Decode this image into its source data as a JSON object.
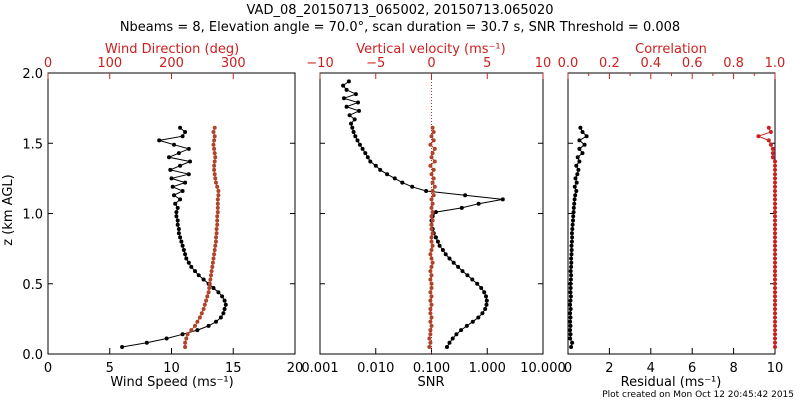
{
  "title": {
    "line1": "VAD_08_20150713_065002, 20150713.065020",
    "line2": "Nbeams = 8, Elevation angle = 70.0°, scan duration = 30.7 s, SNR Threshold = 0.008"
  },
  "credit": "Plot created on Mon Oct 12 20:45:42 2015",
  "colors": {
    "black": "#000000",
    "red": "#cc2020",
    "brown": "#b0442a"
  },
  "chart_data": [
    {
      "id": "wind",
      "type": "line",
      "ylabel": "z (km AGL)",
      "ylim": [
        0,
        2
      ],
      "yticks": [
        "0.0",
        "0.5",
        "1.0",
        "1.5",
        "2.0"
      ],
      "xlabel": "Wind Speed (ms⁻¹)",
      "xlim": [
        0,
        20
      ],
      "xticks": [
        "0",
        "5",
        "10",
        "15",
        "20"
      ],
      "x2label": "Wind Direction (deg)",
      "x2lim": [
        0,
        400
      ],
      "x2ticks": [
        "0",
        "100",
        "200",
        "300"
      ],
      "series": [
        {
          "axis": "bottom",
          "color": "#000000",
          "z": [
            0.05,
            0.08,
            0.11,
            0.14,
            0.17,
            0.2,
            0.23,
            0.26,
            0.29,
            0.32,
            0.35,
            0.38,
            0.41,
            0.44,
            0.47,
            0.5,
            0.53,
            0.56,
            0.59,
            0.62,
            0.65,
            0.68,
            0.71,
            0.74,
            0.77,
            0.8,
            0.83,
            0.86,
            0.89,
            0.92,
            0.95,
            0.98,
            1.01,
            1.04,
            1.07,
            1.1,
            1.13,
            1.16,
            1.19,
            1.22,
            1.25,
            1.28,
            1.31,
            1.34,
            1.37,
            1.4,
            1.43,
            1.46,
            1.49,
            1.52,
            1.55,
            1.58,
            1.61
          ],
          "values": [
            6.0,
            8.0,
            9.6,
            10.9,
            12.1,
            13.0,
            13.6,
            14.0,
            14.2,
            14.3,
            14.4,
            14.3,
            14.1,
            13.8,
            13.4,
            13.0,
            12.6,
            12.2,
            11.9,
            11.6,
            11.4,
            11.2,
            11.1,
            11.0,
            10.9,
            10.8,
            10.7,
            10.6,
            10.6,
            10.5,
            10.5,
            10.4,
            10.4,
            10.5,
            10.3,
            10.7,
            10.2,
            10.9,
            10.1,
            11.1,
            10.0,
            11.4,
            9.9,
            10.7,
            11.5,
            9.8,
            10.6,
            11.4,
            10.2,
            9.0,
            10.9,
            11.1,
            10.7
          ]
        },
        {
          "axis": "top",
          "color": "#b0442a",
          "z": [
            0.05,
            0.08,
            0.11,
            0.14,
            0.17,
            0.2,
            0.23,
            0.26,
            0.29,
            0.32,
            0.35,
            0.38,
            0.41,
            0.44,
            0.47,
            0.5,
            0.53,
            0.56,
            0.59,
            0.62,
            0.65,
            0.68,
            0.71,
            0.74,
            0.77,
            0.8,
            0.83,
            0.86,
            0.89,
            0.92,
            0.95,
            0.98,
            1.01,
            1.04,
            1.07,
            1.1,
            1.13,
            1.16,
            1.19,
            1.22,
            1.25,
            1.28,
            1.31,
            1.34,
            1.37,
            1.4,
            1.43,
            1.46,
            1.49,
            1.52,
            1.55,
            1.58,
            1.61
          ],
          "values": [
            222,
            222,
            224,
            226,
            232,
            238,
            242,
            246,
            249,
            252,
            254,
            256,
            258,
            260,
            261,
            262,
            263,
            264,
            265,
            266,
            267,
            268,
            269,
            270,
            271,
            272,
            272,
            273,
            273,
            274,
            274,
            274,
            275,
            275,
            275,
            275,
            276,
            276,
            274,
            272,
            271,
            270,
            269,
            269,
            270,
            271,
            270,
            269,
            268,
            269,
            270,
            268,
            270
          ]
        }
      ]
    },
    {
      "id": "snr",
      "type": "line",
      "ylim": [
        0,
        2
      ],
      "xlabel": "SNR",
      "xlim": [
        0.001,
        10
      ],
      "xscale": "log",
      "xticks": [
        "0.001",
        "0.010",
        "0.100",
        "1.000",
        "10.000"
      ],
      "x2label": "Vertical velocity (ms⁻¹)",
      "x2lim": [
        -10,
        10
      ],
      "x2ticks": [
        "−10",
        "−5",
        "0",
        "5",
        "10"
      ],
      "threshold_line_at_vertical_velocity": 0,
      "series": [
        {
          "axis": "bottom",
          "color": "#000000",
          "z": [
            0.05,
            0.08,
            0.11,
            0.14,
            0.17,
            0.2,
            0.23,
            0.26,
            0.29,
            0.32,
            0.35,
            0.38,
            0.41,
            0.44,
            0.47,
            0.5,
            0.53,
            0.56,
            0.59,
            0.62,
            0.65,
            0.68,
            0.71,
            0.74,
            0.77,
            0.8,
            0.83,
            0.86,
            0.89,
            0.92,
            0.95,
            0.98,
            1.01,
            1.04,
            1.07,
            1.1,
            1.13,
            1.16,
            1.19,
            1.22,
            1.25,
            1.28,
            1.31,
            1.34,
            1.37,
            1.4,
            1.43,
            1.46,
            1.49,
            1.52,
            1.55,
            1.58,
            1.61,
            1.64,
            1.67,
            1.7,
            1.73,
            1.76,
            1.79,
            1.82,
            1.85,
            1.88,
            1.91,
            1.94
          ],
          "values": [
            0.19,
            0.21,
            0.24,
            0.28,
            0.34,
            0.43,
            0.55,
            0.69,
            0.82,
            0.92,
            0.97,
            0.98,
            0.95,
            0.88,
            0.78,
            0.66,
            0.54,
            0.44,
            0.36,
            0.3,
            0.25,
            0.21,
            0.18,
            0.16,
            0.14,
            0.13,
            0.12,
            0.11,
            0.105,
            0.1,
            0.1,
            0.105,
            0.12,
            0.35,
            0.7,
            1.9,
            0.4,
            0.08,
            0.045,
            0.03,
            0.022,
            0.016,
            0.012,
            0.01,
            0.008,
            0.0072,
            0.0065,
            0.0058,
            0.0052,
            0.0047,
            0.0043,
            0.004,
            0.0038,
            0.0036,
            0.0042,
            0.0034,
            0.005,
            0.003,
            0.0048,
            0.0027,
            0.0044,
            0.003,
            0.0026,
            0.0033
          ]
        },
        {
          "axis": "top",
          "color": "#b0442a",
          "z": [
            0.05,
            0.08,
            0.11,
            0.14,
            0.17,
            0.2,
            0.23,
            0.26,
            0.29,
            0.32,
            0.35,
            0.38,
            0.41,
            0.44,
            0.47,
            0.5,
            0.53,
            0.56,
            0.59,
            0.62,
            0.65,
            0.68,
            0.71,
            0.74,
            0.77,
            0.8,
            0.83,
            0.86,
            0.89,
            0.92,
            0.95,
            0.98,
            1.01,
            1.04,
            1.07,
            1.1,
            1.13,
            1.16,
            1.19,
            1.22,
            1.25,
            1.28,
            1.31,
            1.34,
            1.37,
            1.4,
            1.43,
            1.46,
            1.49,
            1.52,
            1.55,
            1.58,
            1.61
          ],
          "values": [
            -0.2,
            -0.1,
            -0.2,
            -0.1,
            -0.1,
            0.0,
            -0.1,
            0.0,
            -0.1,
            -0.1,
            0.0,
            -0.1,
            0.0,
            -0.1,
            0.0,
            0.0,
            -0.1,
            0.0,
            -0.1,
            0.0,
            0.1,
            0.0,
            -0.1,
            0.0,
            0.1,
            0.0,
            0.0,
            0.1,
            0.0,
            0.0,
            0.1,
            0.0,
            0.1,
            0.0,
            0.1,
            0.0,
            0.2,
            0.1,
            0.3,
            0.1,
            0.2,
            0.0,
            0.2,
            -0.1,
            0.3,
            0.0,
            0.1,
            0.3,
            -0.1,
            0.2,
            0.0,
            0.2,
            0.1
          ]
        }
      ]
    },
    {
      "id": "residual",
      "type": "line",
      "ylim": [
        0,
        2
      ],
      "xlabel": "Residual (ms⁻¹)",
      "xlim": [
        0,
        10
      ],
      "xticks": [
        "0",
        "2",
        "4",
        "6",
        "8",
        "10"
      ],
      "x2label": "Correlation",
      "x2lim": [
        0,
        1
      ],
      "x2ticks": [
        "0.0",
        "0.2",
        "0.4",
        "0.6",
        "0.8",
        "1.0"
      ],
      "series": [
        {
          "axis": "bottom",
          "color": "#000000",
          "z": [
            0.05,
            0.08,
            0.11,
            0.14,
            0.17,
            0.2,
            0.23,
            0.26,
            0.29,
            0.32,
            0.35,
            0.38,
            0.41,
            0.44,
            0.47,
            0.5,
            0.53,
            0.56,
            0.59,
            0.62,
            0.65,
            0.68,
            0.71,
            0.74,
            0.77,
            0.8,
            0.83,
            0.86,
            0.89,
            0.92,
            0.95,
            0.98,
            1.01,
            1.04,
            1.07,
            1.1,
            1.13,
            1.16,
            1.19,
            1.22,
            1.25,
            1.28,
            1.31,
            1.34,
            1.37,
            1.4,
            1.43,
            1.46,
            1.49,
            1.52,
            1.55,
            1.58,
            1.61
          ],
          "values": [
            0.15,
            0.2,
            0.1,
            0.12,
            0.1,
            0.12,
            0.1,
            0.12,
            0.1,
            0.13,
            0.1,
            0.12,
            0.14,
            0.12,
            0.13,
            0.12,
            0.14,
            0.15,
            0.13,
            0.15,
            0.16,
            0.15,
            0.17,
            0.18,
            0.17,
            0.19,
            0.2,
            0.19,
            0.21,
            0.22,
            0.24,
            0.25,
            0.27,
            0.28,
            0.3,
            0.32,
            0.35,
            0.4,
            0.33,
            0.42,
            0.36,
            0.45,
            0.5,
            0.4,
            0.55,
            0.47,
            0.7,
            0.55,
            0.8,
            0.55,
            0.9,
            0.7,
            0.6
          ]
        },
        {
          "axis": "top",
          "color": "#cc2020",
          "z": [
            0.05,
            0.08,
            0.11,
            0.14,
            0.17,
            0.2,
            0.23,
            0.26,
            0.29,
            0.32,
            0.35,
            0.38,
            0.41,
            0.44,
            0.47,
            0.5,
            0.53,
            0.56,
            0.59,
            0.62,
            0.65,
            0.68,
            0.71,
            0.74,
            0.77,
            0.8,
            0.83,
            0.86,
            0.89,
            0.92,
            0.95,
            0.98,
            1.01,
            1.04,
            1.07,
            1.1,
            1.13,
            1.16,
            1.19,
            1.22,
            1.25,
            1.28,
            1.31,
            1.34,
            1.37,
            1.4,
            1.43,
            1.46,
            1.49,
            1.52,
            1.55,
            1.58,
            1.61
          ],
          "values": [
            1.0,
            1.0,
            1.0,
            1.0,
            1.0,
            1.0,
            1.0,
            1.0,
            1.0,
            1.0,
            1.0,
            1.0,
            1.0,
            1.0,
            1.0,
            1.0,
            1.0,
            1.0,
            1.0,
            1.0,
            1.0,
            1.0,
            1.0,
            1.0,
            1.0,
            1.0,
            1.0,
            1.0,
            1.0,
            1.0,
            1.0,
            1.0,
            1.0,
            1.0,
            1.0,
            1.0,
            1.0,
            1.0,
            1.0,
            1.0,
            1.0,
            1.0,
            1.0,
            1.0,
            1.0,
            0.99,
            0.99,
            0.99,
            0.98,
            0.97,
            0.92,
            0.98,
            0.97
          ]
        }
      ]
    }
  ]
}
